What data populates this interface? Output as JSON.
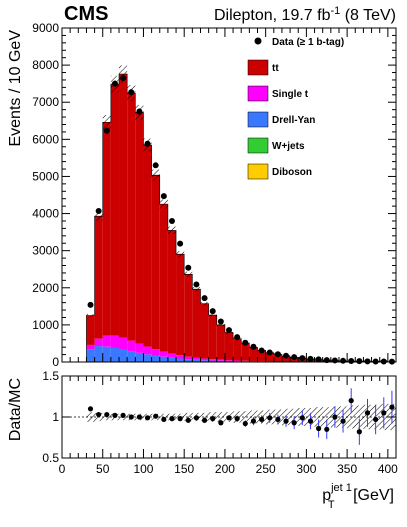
{
  "header": {
    "experiment": "CMS",
    "lumi_prefix": "Dilepton, 19.7 fb",
    "lumi_sup": "-1",
    "lumi_suffix": " (8 TeV)"
  },
  "colors": {
    "ttbar": "#cc0000",
    "drell_yan": "#3a78ff",
    "single_t": "#ff00ff",
    "wjets": "#33cc33",
    "diboson": "#ffcc00"
  },
  "chart_data": [
    {
      "type": "bar",
      "subtype": "stacked-histogram",
      "ylabel": "Events / 10 GeV",
      "xlim": [
        0,
        410
      ],
      "ylim": [
        0,
        9000
      ],
      "yticks": [
        "0",
        "1000",
        "2000",
        "3000",
        "4000",
        "5000",
        "6000",
        "7000",
        "8000",
        "9000"
      ],
      "bin_width": 10,
      "bin_low_edges": [
        30,
        40,
        50,
        60,
        70,
        80,
        90,
        100,
        110,
        120,
        130,
        140,
        150,
        160,
        170,
        180,
        190,
        200,
        210,
        220,
        230,
        240,
        250,
        260,
        270,
        280,
        290,
        300,
        310,
        320,
        330,
        340,
        350,
        360,
        370,
        380,
        390,
        400
      ],
      "legend_position": "top-right",
      "series": [
        {
          "name": "Diboson",
          "color_key": "diboson",
          "values": [
            5,
            5,
            5,
            4,
            4,
            4,
            3,
            3,
            3,
            2,
            2,
            2,
            2,
            1,
            1,
            1,
            1,
            1,
            1,
            1,
            1,
            1,
            0,
            0,
            0,
            0,
            0,
            0,
            0,
            0,
            0,
            0,
            0,
            0,
            0,
            0,
            0,
            0
          ]
        },
        {
          "name": "W+jets",
          "color_key": "wjets",
          "values": [
            5,
            5,
            5,
            4,
            4,
            3,
            3,
            3,
            2,
            2,
            2,
            2,
            1,
            1,
            1,
            1,
            1,
            1,
            1,
            1,
            1,
            1,
            0,
            0,
            0,
            0,
            0,
            0,
            0,
            0,
            0,
            0,
            0,
            0,
            0,
            0,
            0,
            0
          ]
        },
        {
          "name": "Drell-Yan",
          "color_key": "drell_yan",
          "values": [
            330,
            420,
            400,
            370,
            330,
            280,
            240,
            200,
            170,
            140,
            110,
            90,
            70,
            55,
            45,
            38,
            30,
            24,
            20,
            16,
            13,
            11,
            9,
            7,
            6,
            5,
            4,
            3,
            3,
            2,
            2,
            2,
            1,
            1,
            1,
            1,
            1,
            1
          ]
        },
        {
          "name": "Single t",
          "color_key": "single_t",
          "values": [
            120,
            200,
            300,
            330,
            320,
            290,
            250,
            210,
            170,
            140,
            110,
            90,
            70,
            55,
            45,
            35,
            28,
            22,
            18,
            14,
            12,
            10,
            8,
            6,
            5,
            4,
            3,
            3,
            2,
            2,
            1,
            1,
            1,
            1,
            1,
            1,
            1,
            1
          ]
        },
        {
          "name": "tt",
          "color_key": "ttbar",
          "values": [
            790,
            3300,
            5750,
            6780,
            7100,
            6670,
            6230,
            5430,
            4690,
            3970,
            3320,
            2720,
            2220,
            1850,
            1480,
            1190,
            940,
            750,
            590,
            480,
            370,
            290,
            235,
            190,
            150,
            118,
            95,
            75,
            60,
            48,
            38,
            30,
            24,
            20,
            16,
            13,
            10,
            8
          ]
        }
      ],
      "data": {
        "name": "Data (≥ 1 b-tag)",
        "values": [
          1540,
          4070,
          6230,
          7500,
          7650,
          7270,
          6750,
          5880,
          5300,
          4470,
          3800,
          3190,
          2540,
          2090,
          1720,
          1370,
          1090,
          860,
          670,
          520,
          410,
          310,
          255,
          210,
          170,
          130,
          105,
          85,
          70,
          52,
          42,
          32,
          28,
          22,
          17,
          14,
          12,
          10
        ]
      },
      "stat_uncertainty": "hatched band"
    },
    {
      "type": "scatter",
      "subtype": "ratio",
      "ylabel": "Data/MC",
      "xlabel": "p_T^{jet 1} [GeV]",
      "xlabel_main": "p",
      "xlabel_sub": "T",
      "xlabel_sup": "jet 1",
      "xlabel_unit": " [GeV]",
      "xlim": [
        0,
        410
      ],
      "ylim": [
        0.5,
        1.5
      ],
      "yticks": [
        "0.5",
        "1",
        "1.5"
      ],
      "xticks": [
        "0",
        "50",
        "100",
        "150",
        "200",
        "250",
        "300",
        "350",
        "400"
      ],
      "reference_line": 1,
      "x": [
        35,
        45,
        55,
        65,
        75,
        85,
        95,
        105,
        115,
        125,
        135,
        145,
        155,
        165,
        175,
        185,
        195,
        205,
        215,
        225,
        235,
        245,
        255,
        265,
        275,
        285,
        295,
        305,
        315,
        325,
        335,
        345,
        355,
        365,
        375,
        385,
        395,
        405
      ],
      "values": [
        1.1,
        1.03,
        1.03,
        1.02,
        1.02,
        1.0,
        1.0,
        0.99,
        1.01,
        0.97,
        0.98,
        0.98,
        0.96,
        0.99,
        0.96,
        0.98,
        0.93,
        0.99,
        0.98,
        0.92,
        0.95,
        0.97,
        0.99,
        0.97,
        0.95,
        0.93,
        0.99,
        0.95,
        0.86,
        0.85,
        1.0,
        0.95,
        1.2,
        0.82,
        1.05,
        0.97,
        1.05,
        1.12
      ],
      "errors": [
        0.03,
        0.02,
        0.02,
        0.02,
        0.02,
        0.02,
        0.02,
        0.02,
        0.02,
        0.02,
        0.02,
        0.02,
        0.02,
        0.02,
        0.03,
        0.03,
        0.03,
        0.03,
        0.04,
        0.04,
        0.05,
        0.05,
        0.06,
        0.06,
        0.07,
        0.08,
        0.09,
        0.1,
        0.11,
        0.12,
        0.13,
        0.14,
        0.15,
        0.16,
        0.17,
        0.18,
        0.19,
        0.2
      ],
      "band_halfwidth": [
        0.06,
        0.05,
        0.04,
        0.04,
        0.04,
        0.04,
        0.04,
        0.04,
        0.04,
        0.04,
        0.04,
        0.04,
        0.05,
        0.05,
        0.05,
        0.06,
        0.06,
        0.06,
        0.07,
        0.07,
        0.08,
        0.08,
        0.09,
        0.09,
        0.1,
        0.1,
        0.11,
        0.11,
        0.12,
        0.12,
        0.13,
        0.13,
        0.14,
        0.14,
        0.15,
        0.15,
        0.16,
        0.16
      ]
    }
  ]
}
